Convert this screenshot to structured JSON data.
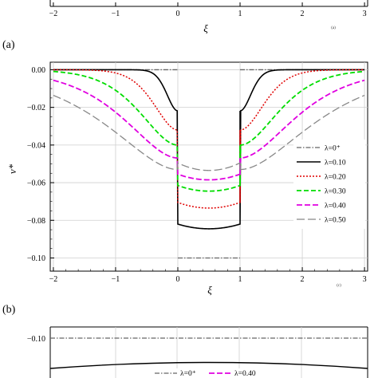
{
  "top_strip": {
    "xticks": [
      "−2",
      "−1",
      "0",
      "1",
      "2",
      "3"
    ],
    "xlabel": "ξ",
    "sublabel": "(a)"
  },
  "panel_a_label": "(a)",
  "panel_b_label": "(b)",
  "bottom_strip": {
    "ytick": "−0.10",
    "legend": [
      "λ=0⁺",
      "λ=0.40"
    ]
  },
  "chart_data": {
    "type": "line",
    "title": "",
    "xlabel": "ξ",
    "ylabel": "v*",
    "corner_label": "(c)",
    "xlim": [
      -2.05,
      3.05
    ],
    "ylim": [
      -0.107,
      0.004
    ],
    "xticks": [
      -2,
      -1,
      0,
      1,
      2,
      3
    ],
    "xtick_labels": [
      "−2",
      "−1",
      "0",
      "1",
      "2",
      "3"
    ],
    "yticks": [
      0.0,
      -0.02,
      -0.04,
      -0.06,
      -0.08,
      -0.1
    ],
    "ytick_labels": [
      "0.00",
      "−0.02",
      "−0.04",
      "−0.06",
      "−0.08",
      "−0.10"
    ],
    "grid": true,
    "legend_position": "right",
    "series": [
      {
        "name": "λ=0⁺",
        "color": "#666666",
        "dash": "6,2,1.5,2",
        "width": 1.3,
        "lambda": 0.0,
        "inner_min": -0.1,
        "inner_edge": -0.1
      },
      {
        "name": "λ=0.10",
        "color": "#000000",
        "dash": "",
        "width": 1.6,
        "lambda": 0.1,
        "inner_min": -0.0845,
        "inner_edge": -0.082
      },
      {
        "name": "λ=0.20",
        "color": "#e00000",
        "dash": "2,2",
        "width": 1.5,
        "lambda": 0.2,
        "inner_min": -0.0735,
        "inner_edge": -0.0705
      },
      {
        "name": "λ=0.30",
        "color": "#00dd00",
        "dash": "6,3",
        "width": 1.8,
        "lambda": 0.3,
        "inner_min": -0.0645,
        "inner_edge": -0.0615
      },
      {
        "name": "λ=0.40",
        "color": "#e000e0",
        "dash": "7,3",
        "width": 1.8,
        "lambda": 0.4,
        "inner_min": -0.0585,
        "inner_edge": -0.0555
      },
      {
        "name": "λ=0.50",
        "color": "#888888",
        "dash": "10,4",
        "width": 1.3,
        "lambda": 0.5,
        "inner_min": -0.0535,
        "inner_edge": -0.0495
      }
    ]
  }
}
